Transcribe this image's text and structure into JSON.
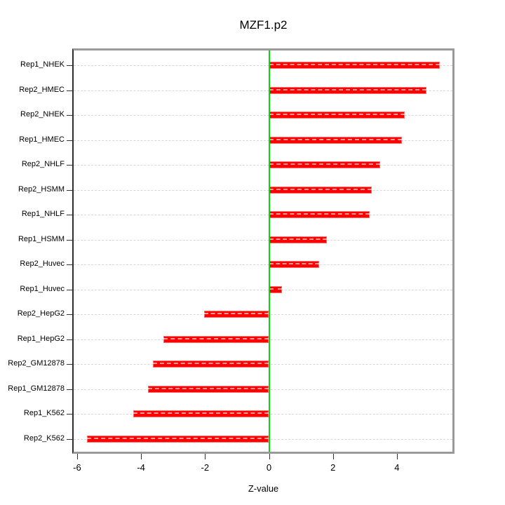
{
  "title": "MZF1.p2",
  "chart_data": {
    "type": "bar",
    "orientation": "horizontal",
    "title": "MZF1.p2",
    "xlabel": "Z-value",
    "ylabel": "",
    "categories": [
      "Rep1_NHEK",
      "Rep2_HMEC",
      "Rep2_NHEK",
      "Rep1_HMEC",
      "Rep2_NHLF",
      "Rep2_HSMM",
      "Rep1_NHLF",
      "Rep1_HSMM",
      "Rep2_Huvec",
      "Rep1_Huvec",
      "Rep2_HepG2",
      "Rep1_HepG2",
      "Rep2_GM12878",
      "Rep1_GM12878",
      "Rep1_K562",
      "Rep2_K562"
    ],
    "values": [
      5.35,
      4.93,
      4.25,
      4.16,
      3.47,
      3.22,
      3.14,
      1.81,
      1.57,
      0.4,
      -2.03,
      -3.31,
      -3.62,
      -3.79,
      -4.25,
      -5.69
    ],
    "x_ticks": [
      -6,
      -4,
      -2,
      0,
      2,
      4
    ],
    "xlim": [
      -6.1,
      5.8
    ],
    "grid": "dotted-row-guides",
    "legend": "none",
    "bar_color": "#ff0000",
    "bar_edge_color": "#ff6b6b",
    "zero_line_color": "#00dd00",
    "guide_line_color": "#d7d7d7",
    "frame_color": "#9a9a9a"
  }
}
